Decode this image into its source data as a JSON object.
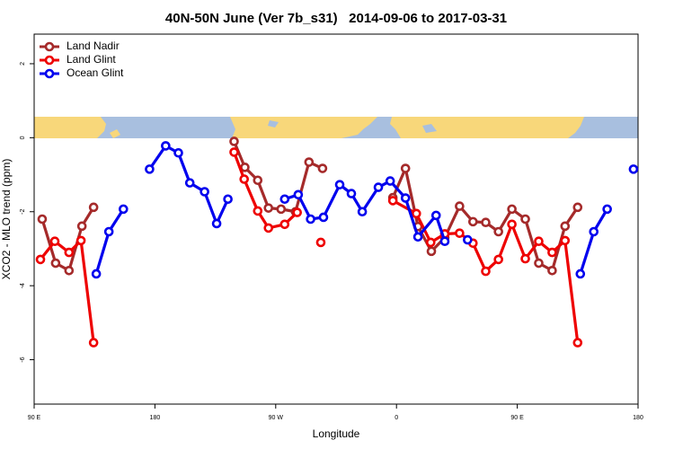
{
  "chart_data": {
    "type": "line",
    "title": "40N-50N June (Ver 7b_s31)   2014-09-06 to 2017-03-31",
    "xlabel": "Longitude",
    "ylabel": "XCO2 - MLO trend (ppm)",
    "xlim": [
      90,
      540
    ],
    "ylim": [
      -7.2,
      2.8
    ],
    "xticks": [
      {
        "value": 90,
        "label": "90 E"
      },
      180,
      {
        "value": 270,
        "label": "90 W"
      },
      {
        "value": 360,
        "label": "0"
      },
      {
        "value": 450,
        "label": "90 E"
      },
      {
        "value": 540,
        "label": "180"
      }
    ],
    "yticks": [
      -6,
      -4,
      -2,
      0,
      2
    ],
    "legend": "top-left",
    "series": [
      {
        "name": "Land Nadir",
        "color": "#a52a2a",
        "x": [
          96,
          106,
          116,
          125.6,
          134.3,
          null,
          239,
          247,
          256.6,
          264.6,
          274,
          284.8,
          294.8,
          304.9,
          null,
          357.3,
          366.7,
          376,
          386,
          396,
          407,
          417,
          426.5,
          436,
          446,
          456,
          466,
          476,
          485.6,
          495
        ],
        "values": [
          -2.2,
          -3.39,
          -3.59,
          -2.39,
          -1.88,
          null,
          -0.1,
          -0.8,
          -1.15,
          -1.9,
          -1.93,
          -2.0,
          -0.66,
          -0.83,
          null,
          -1.62,
          -0.83,
          -2.4,
          -3.07,
          -2.7,
          -1.85,
          -2.27,
          -2.29,
          -2.54,
          -1.93,
          -2.2,
          -3.39,
          -3.59,
          -2.39,
          -1.88
        ]
      },
      {
        "name": "Land Glint",
        "color": "#ee0000",
        "x": [
          94.7,
          105.4,
          116,
          124.9,
          134.3,
          null,
          239,
          246.5,
          256.6,
          264.6,
          276.7,
          286,
          null,
          303.6,
          null,
          357.3,
          374.8,
          385.5,
          396,
          407,
          417,
          426.5,
          436,
          446,
          456,
          466,
          476,
          485.6,
          495
        ],
        "values": [
          -3.29,
          -2.8,
          -3.1,
          -2.78,
          -5.54,
          null,
          -0.39,
          -1.12,
          -1.98,
          -2.44,
          -2.34,
          -2.02,
          null,
          -2.83,
          null,
          -1.7,
          -2.05,
          -2.83,
          -2.6,
          -2.58,
          -2.85,
          -3.61,
          -3.29,
          -2.34,
          -3.27,
          -2.8,
          -3.1,
          -2.78,
          -5.54
        ]
      },
      {
        "name": "Ocean Glint",
        "color": "#0000ee",
        "x": [
          136.3,
          145.7,
          156.5,
          null,
          176,
          188,
          197.5,
          206,
          217,
          226,
          234.4,
          null,
          276.7,
          286.8,
          296,
          305.6,
          317.7,
          326.4,
          334.5,
          346.5,
          355.3,
          366.7,
          376,
          389.5,
          396,
          null,
          413,
          null,
          497,
          507,
          517,
          null,
          536.6
        ],
        "values": [
          -3.68,
          -2.54,
          -1.93,
          null,
          -0.85,
          -0.22,
          -0.41,
          -1.22,
          -1.46,
          -2.32,
          -1.66,
          null,
          -1.66,
          -1.54,
          -2.2,
          -2.15,
          -1.27,
          -1.51,
          -2.0,
          -1.34,
          -1.17,
          -1.63,
          -2.68,
          -2.1,
          -2.8,
          null,
          -2.76,
          null,
          -3.68,
          -2.54,
          -1.93,
          null,
          -0.85
        ]
      }
    ]
  }
}
